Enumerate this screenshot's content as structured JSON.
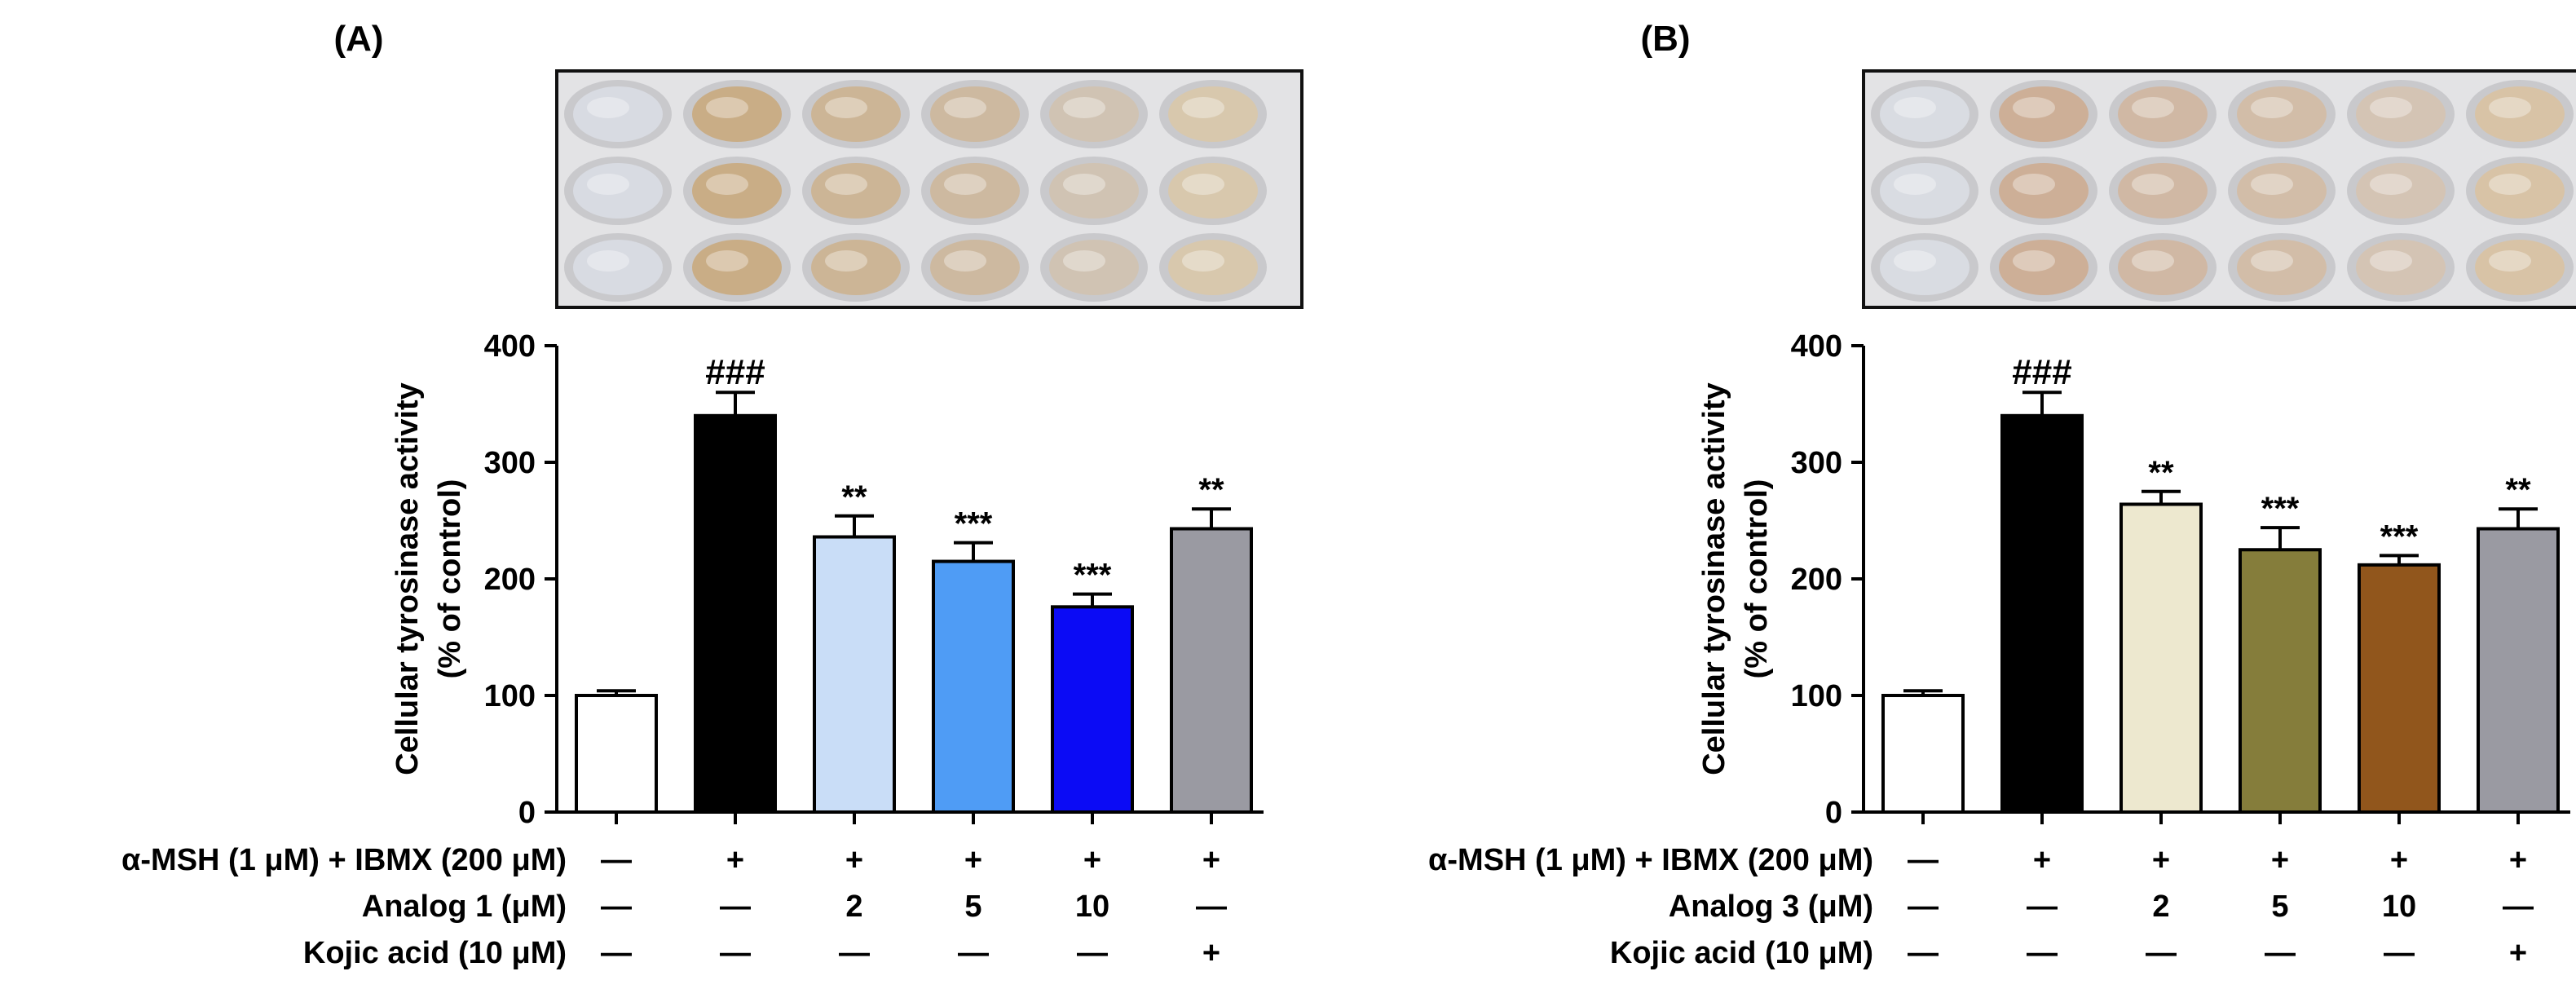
{
  "panels": [
    {
      "panel_label": "(A)",
      "plate_photo": {
        "rows": 3,
        "cols": 6,
        "well_colors": [
          "#d8dbe2",
          "#c9ad86",
          "#ccb596",
          "#cdb9a0",
          "#d0c3b3",
          "#d8c8ad"
        ]
      },
      "row_labels": [
        "α-MSH (1 μM) + IBMX (200 μM)",
        "Analog 1 (μM)",
        "Kojic acid (10 μM)"
      ],
      "treatment_rows": [
        [
          "—",
          "+",
          "+",
          "+",
          "+",
          "+"
        ],
        [
          "—",
          "—",
          "2",
          "5",
          "10",
          "—"
        ],
        [
          "—",
          "—",
          "—",
          "—",
          "—",
          "+"
        ]
      ]
    },
    {
      "panel_label": "(B)",
      "plate_photo": {
        "rows": 3,
        "cols": 6,
        "well_colors": [
          "#d9dce2",
          "#cdaf97",
          "#d0b8a4",
          "#d2bda8",
          "#d4c4b4",
          "#d8c3a6"
        ]
      },
      "row_labels": [
        "α-MSH (1 μM) + IBMX (200 μM)",
        "Analog 3 (μM)",
        "Kojic acid (10 μM)"
      ],
      "treatment_rows": [
        [
          "—",
          "+",
          "+",
          "+",
          "+",
          "+"
        ],
        [
          "—",
          "—",
          "2",
          "5",
          "10",
          "—"
        ],
        [
          "—",
          "—",
          "—",
          "—",
          "—",
          "+"
        ]
      ]
    }
  ],
  "chart_data": [
    {
      "type": "bar",
      "title": "(A)",
      "ylabel_line1": "Cellular tyrosinase activity",
      "ylabel_line2": "(% of control)",
      "ylim": [
        0,
        400
      ],
      "yticks": [
        0,
        100,
        200,
        300,
        400
      ],
      "values": [
        100,
        340,
        236,
        215,
        176,
        243
      ],
      "errors": [
        4,
        20,
        18,
        16,
        11,
        17
      ],
      "bar_colors": [
        "#ffffff",
        "#000000",
        "#c9ddf7",
        "#4f9cf5",
        "#0b0bf5",
        "#9a9aa2"
      ],
      "significance": [
        "",
        "###",
        "**",
        "***",
        "***",
        "**"
      ],
      "grid": false
    },
    {
      "type": "bar",
      "title": "(B)",
      "ylabel_line1": "Cellular tyrosinase activity",
      "ylabel_line2": "(% of control)",
      "ylim": [
        0,
        400
      ],
      "yticks": [
        0,
        100,
        200,
        300,
        400
      ],
      "values": [
        100,
        340,
        264,
        225,
        212,
        243
      ],
      "errors": [
        4,
        20,
        11,
        19,
        8,
        17
      ],
      "bar_colors": [
        "#ffffff",
        "#000000",
        "#ede8cf",
        "#857d3b",
        "#91561c",
        "#9a9aa2"
      ],
      "significance": [
        "",
        "###",
        "**",
        "***",
        "***",
        "**"
      ],
      "grid": false
    }
  ]
}
